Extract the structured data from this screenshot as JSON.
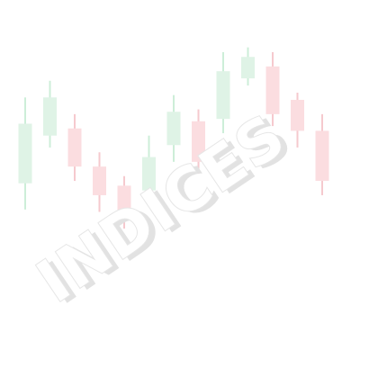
{
  "artwork": {
    "wordmark": "INDICES",
    "colors": {
      "bullish_body": "#dff3e6",
      "bullish_wick": "#cdeed8",
      "bearish_body": "#fbdde0",
      "bearish_wick": "#f6c9ce",
      "wordmark_fill": "#ffffff",
      "wordmark_outline": "#e6e6e6",
      "wordmark_shadow": "#e2e2e2"
    },
    "candles": [
      {
        "dir": "up",
        "open": 42,
        "close": 67,
        "high": 78,
        "low": 31
      },
      {
        "dir": "up",
        "open": 62,
        "close": 78,
        "high": 85,
        "low": 57
      },
      {
        "dir": "down",
        "open": 65,
        "close": 49,
        "high": 71,
        "low": 43
      },
      {
        "dir": "down",
        "open": 49,
        "close": 37,
        "high": 55,
        "low": 30
      },
      {
        "dir": "down",
        "open": 41,
        "close": 28,
        "high": 45,
        "low": 23
      },
      {
        "dir": "up",
        "open": 39,
        "close": 53,
        "high": 62,
        "low": 35
      },
      {
        "dir": "up",
        "open": 58,
        "close": 72,
        "high": 79,
        "low": 51
      },
      {
        "dir": "down",
        "open": 68,
        "close": 51,
        "high": 73,
        "low": 46
      },
      {
        "dir": "up",
        "open": 69,
        "close": 89,
        "high": 97,
        "low": 63
      },
      {
        "dir": "up",
        "open": 86,
        "close": 95,
        "high": 99,
        "low": 83
      },
      {
        "dir": "down",
        "open": 91,
        "close": 71,
        "high": 97,
        "low": 66
      },
      {
        "dir": "down",
        "open": 77,
        "close": 64,
        "high": 80,
        "low": 57
      },
      {
        "dir": "down",
        "open": 64,
        "close": 43,
        "high": 71,
        "low": 37
      }
    ]
  }
}
